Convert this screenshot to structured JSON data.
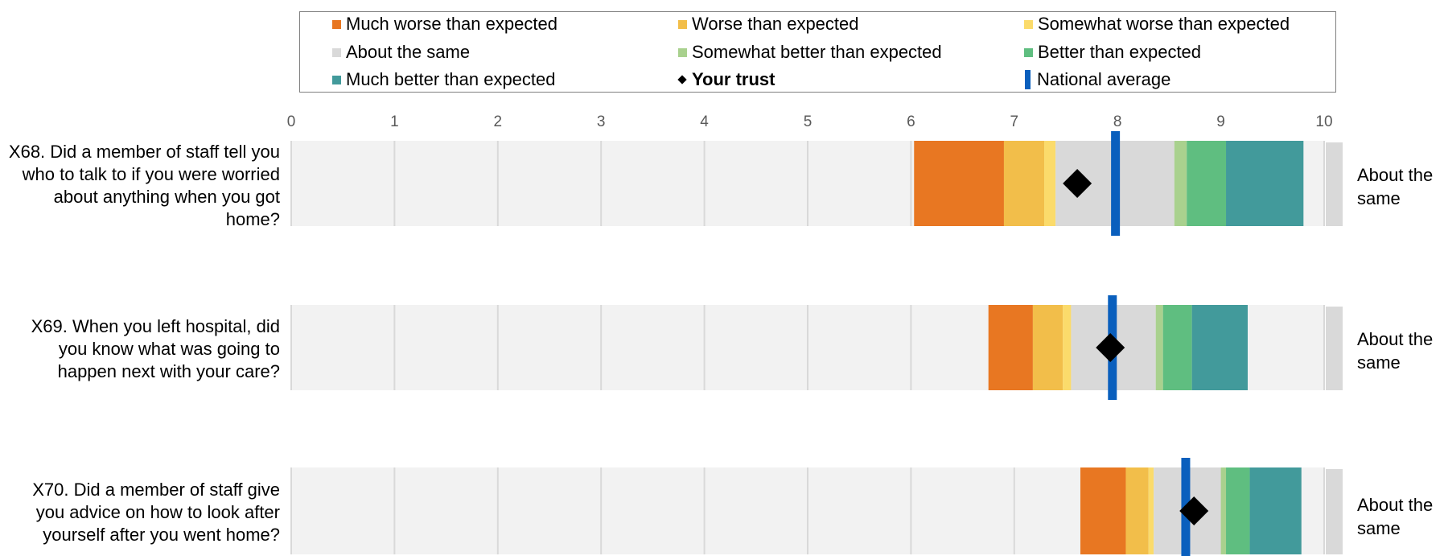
{
  "legend": {
    "much_worse": "Much worse than expected",
    "worse": "Worse than expected",
    "somewhat_worse": "Somewhat worse than expected",
    "about_same": "About the same",
    "somewhat_better": "Somewhat better than expected",
    "better": "Better than expected",
    "much_better": "Much better than expected",
    "your_trust": "Your trust",
    "national_average": "National average"
  },
  "colors": {
    "much_worse": "#E87722",
    "worse": "#F2BE4A",
    "somewhat_worse": "#FBDB6B",
    "about_same": "#D9D9D9",
    "somewhat_better": "#A9D18E",
    "better": "#5FBE80",
    "much_better": "#429A9B",
    "background_band": "#F2F2F2",
    "gridline": "#D9D9D9",
    "your_trust": "#000000",
    "national_average": "#0A5FBD"
  },
  "chart_data": {
    "type": "bar",
    "xlim": [
      0,
      10
    ],
    "ticks": [
      0,
      1,
      2,
      3,
      4,
      5,
      6,
      7,
      8,
      9,
      10
    ],
    "grid": true,
    "legend_position": "top",
    "questions": [
      {
        "label": "X68. Did a member of staff tell you who to talk to if you were worried about anything when you got home?",
        "result": "About the same",
        "bands": {
          "much_worse": [
            6.03,
            6.9
          ],
          "worse": [
            6.9,
            7.29
          ],
          "somewhat_worse": [
            7.29,
            7.4
          ],
          "about_same": [
            7.4,
            8.55
          ],
          "somewhat_better": [
            8.55,
            8.67
          ],
          "better": [
            8.67,
            9.05
          ],
          "much_better": [
            9.05,
            9.8
          ]
        },
        "your_trust": 7.61,
        "national_average": 7.98
      },
      {
        "label": "X69. When you left hospital, did you know what was going to happen next with your care?",
        "result": "About the same",
        "bands": {
          "much_worse": [
            6.75,
            7.18
          ],
          "worse": [
            7.18,
            7.47
          ],
          "somewhat_worse": [
            7.47,
            7.55
          ],
          "about_same": [
            7.55,
            8.37
          ],
          "somewhat_better": [
            8.37,
            8.44
          ],
          "better": [
            8.44,
            8.72
          ],
          "much_better": [
            8.72,
            9.26
          ]
        },
        "your_trust": 7.93,
        "national_average": 7.95
      },
      {
        "label": "X70. Did a member of staff give you advice on how to look after yourself after you went home?",
        "result": "About the same",
        "bands": {
          "much_worse": [
            7.64,
            8.08
          ],
          "worse": [
            8.08,
            8.3
          ],
          "somewhat_worse": [
            8.3,
            8.35
          ],
          "about_same": [
            8.35,
            9.0
          ],
          "somewhat_better": [
            9.0,
            9.05
          ],
          "better": [
            9.05,
            9.28
          ],
          "much_better": [
            9.28,
            9.78
          ]
        },
        "your_trust": 8.74,
        "national_average": 8.66
      }
    ]
  }
}
